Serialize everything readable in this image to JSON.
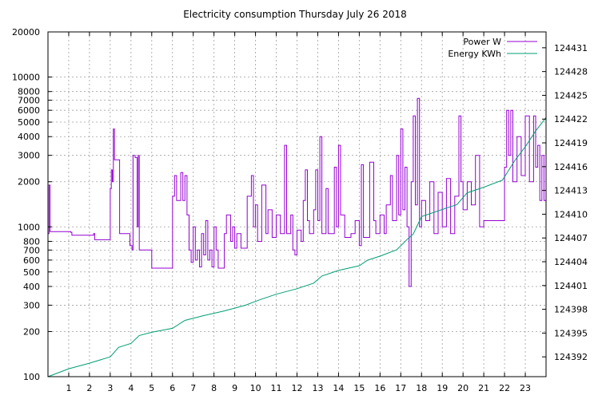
{
  "chart_data": {
    "type": "line",
    "title": "Electricity consumption Thursday July 26 2018",
    "x_ticks": [
      "1",
      "2",
      "3",
      "4",
      "5",
      "6",
      "7",
      "8",
      "9",
      "10",
      "11",
      "12",
      "13",
      "14",
      "15",
      "16",
      "17",
      "18",
      "19",
      "20",
      "21",
      "22",
      "23"
    ],
    "xlim": [
      0,
      24
    ],
    "y_left": {
      "scale": "log",
      "range": [
        100,
        20000
      ],
      "ticks": [
        100,
        200,
        300,
        400,
        500,
        600,
        700,
        800,
        1000,
        2000,
        3000,
        4000,
        5000,
        6000,
        7000,
        8000,
        10000,
        20000
      ],
      "tick_labels": [
        "100",
        "200",
        "300",
        "400",
        "500",
        "600",
        "700",
        "800",
        "1000",
        "2000",
        "3000",
        "4000",
        "5000",
        "6000",
        "7000",
        "8000",
        "10000",
        "20000"
      ]
    },
    "y_right": {
      "scale": "linear",
      "range": [
        124389.5,
        124433
      ],
      "ticks": [
        124392,
        124395,
        124398,
        124401,
        124404,
        124407,
        124410,
        124413,
        124416,
        124419,
        124422,
        124425,
        124428,
        124431
      ],
      "tick_labels": [
        "124392",
        "124395",
        "124398",
        "124401",
        "124404",
        "124407",
        "124410",
        "124413",
        "124416",
        "124419",
        "124422",
        "124425",
        "124428",
        "124431"
      ]
    },
    "grid": true,
    "legend": "top-right",
    "series": [
      {
        "name": "Power W",
        "axis": "left",
        "color": "#9400d3",
        "points": [
          [
            0,
            900
          ],
          [
            0.05,
            1900
          ],
          [
            0.1,
            930
          ],
          [
            1.1,
            920
          ],
          [
            1.15,
            880
          ],
          [
            2.2,
            900
          ],
          [
            2.25,
            820
          ],
          [
            2.95,
            820
          ],
          [
            3.0,
            1800
          ],
          [
            3.05,
            2400
          ],
          [
            3.1,
            2000
          ],
          [
            3.15,
            4500
          ],
          [
            3.2,
            2800
          ],
          [
            3.4,
            2800
          ],
          [
            3.45,
            900
          ],
          [
            3.9,
            900
          ],
          [
            3.95,
            750
          ],
          [
            4.05,
            700
          ],
          [
            4.1,
            3000
          ],
          [
            4.2,
            2900
          ],
          [
            4.3,
            1000
          ],
          [
            4.35,
            3000
          ],
          [
            4.4,
            700
          ],
          [
            4.9,
            700
          ],
          [
            5.0,
            530
          ],
          [
            5.95,
            530
          ],
          [
            6.0,
            1600
          ],
          [
            6.1,
            2200
          ],
          [
            6.2,
            1500
          ],
          [
            6.4,
            2300
          ],
          [
            6.5,
            1500
          ],
          [
            6.6,
            2200
          ],
          [
            6.7,
            1200
          ],
          [
            6.8,
            700
          ],
          [
            6.9,
            580
          ],
          [
            7.0,
            1000
          ],
          [
            7.1,
            600
          ],
          [
            7.2,
            700
          ],
          [
            7.3,
            540
          ],
          [
            7.4,
            900
          ],
          [
            7.5,
            650
          ],
          [
            7.6,
            1100
          ],
          [
            7.7,
            600
          ],
          [
            7.8,
            700
          ],
          [
            7.9,
            540
          ],
          [
            8.0,
            1000
          ],
          [
            8.1,
            700
          ],
          [
            8.2,
            530
          ],
          [
            8.5,
            900
          ],
          [
            8.6,
            1200
          ],
          [
            8.8,
            800
          ],
          [
            8.9,
            1000
          ],
          [
            9.0,
            720
          ],
          [
            9.1,
            900
          ],
          [
            9.3,
            720
          ],
          [
            9.6,
            1600
          ],
          [
            9.8,
            2200
          ],
          [
            9.9,
            1000
          ],
          [
            10.0,
            1400
          ],
          [
            10.1,
            800
          ],
          [
            10.3,
            1900
          ],
          [
            10.5,
            900
          ],
          [
            10.6,
            1300
          ],
          [
            10.8,
            850
          ],
          [
            11.0,
            1200
          ],
          [
            11.2,
            900
          ],
          [
            11.4,
            3500
          ],
          [
            11.5,
            900
          ],
          [
            11.7,
            1200
          ],
          [
            11.8,
            700
          ],
          [
            11.9,
            650
          ],
          [
            12.0,
            950
          ],
          [
            12.2,
            800
          ],
          [
            12.3,
            1500
          ],
          [
            12.4,
            2400
          ],
          [
            12.5,
            1100
          ],
          [
            12.6,
            900
          ],
          [
            12.8,
            1300
          ],
          [
            12.9,
            2400
          ],
          [
            13.0,
            1100
          ],
          [
            13.1,
            4000
          ],
          [
            13.2,
            900
          ],
          [
            13.4,
            1800
          ],
          [
            13.5,
            900
          ],
          [
            13.8,
            2500
          ],
          [
            13.9,
            1000
          ],
          [
            14.0,
            3500
          ],
          [
            14.1,
            1200
          ],
          [
            14.3,
            850
          ],
          [
            14.6,
            900
          ],
          [
            14.8,
            1100
          ],
          [
            15.0,
            750
          ],
          [
            15.1,
            2600
          ],
          [
            15.2,
            850
          ],
          [
            15.5,
            2700
          ],
          [
            15.7,
            1100
          ],
          [
            15.8,
            900
          ],
          [
            16.0,
            1200
          ],
          [
            16.2,
            900
          ],
          [
            16.3,
            1400
          ],
          [
            16.5,
            2200
          ],
          [
            16.6,
            1100
          ],
          [
            16.8,
            3000
          ],
          [
            16.9,
            1200
          ],
          [
            17.0,
            4500
          ],
          [
            17.1,
            1300
          ],
          [
            17.2,
            2500
          ],
          [
            17.3,
            1000
          ],
          [
            17.4,
            400
          ],
          [
            17.5,
            2000
          ],
          [
            17.6,
            5500
          ],
          [
            17.7,
            1400
          ],
          [
            17.8,
            7200
          ],
          [
            17.9,
            1000
          ],
          [
            18.0,
            1500
          ],
          [
            18.2,
            1100
          ],
          [
            18.4,
            2000
          ],
          [
            18.6,
            900
          ],
          [
            18.8,
            1700
          ],
          [
            19.0,
            1000
          ],
          [
            19.2,
            2100
          ],
          [
            19.4,
            900
          ],
          [
            19.6,
            1600
          ],
          [
            19.8,
            5500
          ],
          [
            19.9,
            2000
          ],
          [
            20.0,
            1300
          ],
          [
            20.2,
            2000
          ],
          [
            20.4,
            1400
          ],
          [
            20.6,
            3000
          ],
          [
            20.8,
            1000
          ],
          [
            21.0,
            1100
          ],
          [
            21.9,
            1100
          ],
          [
            22.0,
            2500
          ],
          [
            22.1,
            6000
          ],
          [
            22.2,
            3000
          ],
          [
            22.3,
            6000
          ],
          [
            22.4,
            2000
          ],
          [
            22.6,
            4000
          ],
          [
            22.8,
            2200
          ],
          [
            23.0,
            5500
          ],
          [
            23.2,
            2000
          ],
          [
            23.4,
            5500
          ],
          [
            23.5,
            2500
          ],
          [
            23.6,
            3500
          ],
          [
            23.7,
            1500
          ],
          [
            23.8,
            3000
          ],
          [
            23.9,
            1500
          ],
          [
            24.0,
            1400
          ]
        ]
      },
      {
        "name": "Energy KWh",
        "axis": "right",
        "color": "#009e73",
        "points": [
          [
            0,
            124389.5
          ],
          [
            1,
            124390.5
          ],
          [
            2,
            124391.2
          ],
          [
            3,
            124392
          ],
          [
            3.4,
            124393.2
          ],
          [
            4,
            124393.7
          ],
          [
            4.4,
            124394.7
          ],
          [
            5,
            124395.1
          ],
          [
            6,
            124395.6
          ],
          [
            6.6,
            124396.6
          ],
          [
            7.5,
            124397.2
          ],
          [
            8.5,
            124397.8
          ],
          [
            9.5,
            124398.5
          ],
          [
            10.2,
            124399.2
          ],
          [
            11,
            124399.9
          ],
          [
            12,
            124400.6
          ],
          [
            12.8,
            124401.3
          ],
          [
            13.2,
            124402.2
          ],
          [
            14,
            124402.9
          ],
          [
            15,
            124403.5
          ],
          [
            15.4,
            124404.2
          ],
          [
            16,
            124404.7
          ],
          [
            16.8,
            124405.5
          ],
          [
            17.3,
            124406.8
          ],
          [
            17.6,
            124407.5
          ],
          [
            18,
            124409.7
          ],
          [
            19,
            124410.6
          ],
          [
            19.7,
            124411.2
          ],
          [
            20.2,
            124412.7
          ],
          [
            21,
            124413.4
          ],
          [
            21.9,
            124414.3
          ],
          [
            22.5,
            124416.8
          ],
          [
            23,
            124418.5
          ],
          [
            23.5,
            124420.5
          ],
          [
            24,
            124422.2
          ]
        ]
      }
    ]
  }
}
